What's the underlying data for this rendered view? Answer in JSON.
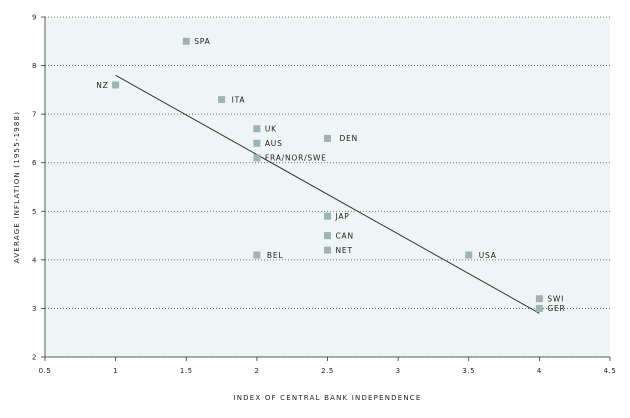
{
  "chart_data": {
    "type": "scatter",
    "xlabel": "INDEX OF CENTRAL BANK INDEPENDENCE",
    "ylabel": "AVERAGE INFLATION (1955-1988)",
    "xlim": [
      0.5,
      4.5
    ],
    "ylim": [
      2,
      9
    ],
    "xticks": [
      "0.5",
      "1",
      "1.5",
      "2",
      "2.5",
      "3",
      "3.5",
      "4",
      "4.5"
    ],
    "yticks": [
      "2",
      "3",
      "4",
      "5",
      "6",
      "7",
      "8",
      "9"
    ],
    "grid": "horizontal dotted",
    "colors": {
      "background": "#eef5f4",
      "marker": "#9fb4b2",
      "line": "#333333",
      "grid": "#555555"
    },
    "points": [
      {
        "label": "SPA",
        "x": 1.5,
        "y": 8.5
      },
      {
        "label": "NZ",
        "x": 1.0,
        "y": 7.6
      },
      {
        "label": "ITA",
        "x": 1.75,
        "y": 7.3
      },
      {
        "label": "UK",
        "x": 2.0,
        "y": 6.7
      },
      {
        "label": "AUS",
        "x": 2.0,
        "y": 6.4
      },
      {
        "label": "FRA/NOR/SWE",
        "x": 2.0,
        "y": 6.1
      },
      {
        "label": "DEN",
        "x": 2.5,
        "y": 6.5
      },
      {
        "label": "JAP",
        "x": 2.5,
        "y": 4.9
      },
      {
        "label": "CAN",
        "x": 2.5,
        "y": 4.5
      },
      {
        "label": "NET",
        "x": 2.5,
        "y": 4.2
      },
      {
        "label": "BEL",
        "x": 2.0,
        "y": 4.1
      },
      {
        "label": "USA",
        "x": 3.5,
        "y": 4.1
      },
      {
        "label": "SWI",
        "x": 4.0,
        "y": 3.2
      },
      {
        "label": "GER",
        "x": 4.0,
        "y": 3.0
      }
    ],
    "trendline": {
      "x": [
        1.0,
        4.0
      ],
      "y": [
        7.8,
        2.9
      ]
    }
  }
}
